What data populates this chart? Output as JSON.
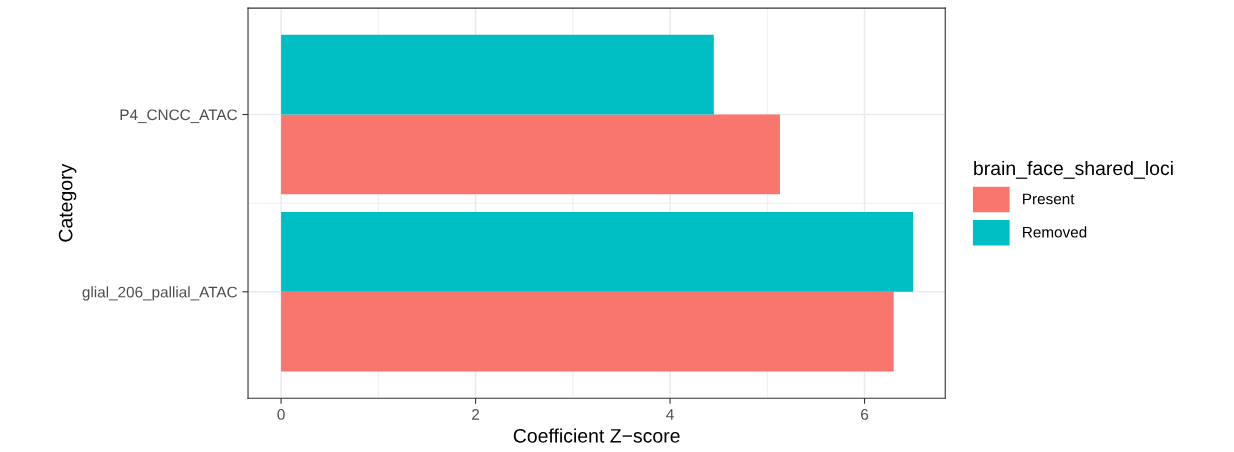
{
  "chart_data": {
    "type": "bar",
    "orientation": "horizontal",
    "xlabel": "Coefficient Z−score",
    "ylabel": "Category",
    "legend_title": "brain_face_shared_loci",
    "categories": [
      "P4_CNCC_ATAC",
      "glial_206_pallial_ATAC"
    ],
    "series": [
      {
        "name": "Present",
        "color": "#f8766d",
        "values": [
          5.13,
          6.3
        ]
      },
      {
        "name": "Removed",
        "color": "#00bfc4",
        "values": [
          4.45,
          6.5
        ]
      }
    ],
    "xlim": [
      -0.34,
      6.83
    ],
    "xticks": [
      0,
      2,
      4,
      6
    ],
    "grid": true,
    "legend": "right"
  }
}
